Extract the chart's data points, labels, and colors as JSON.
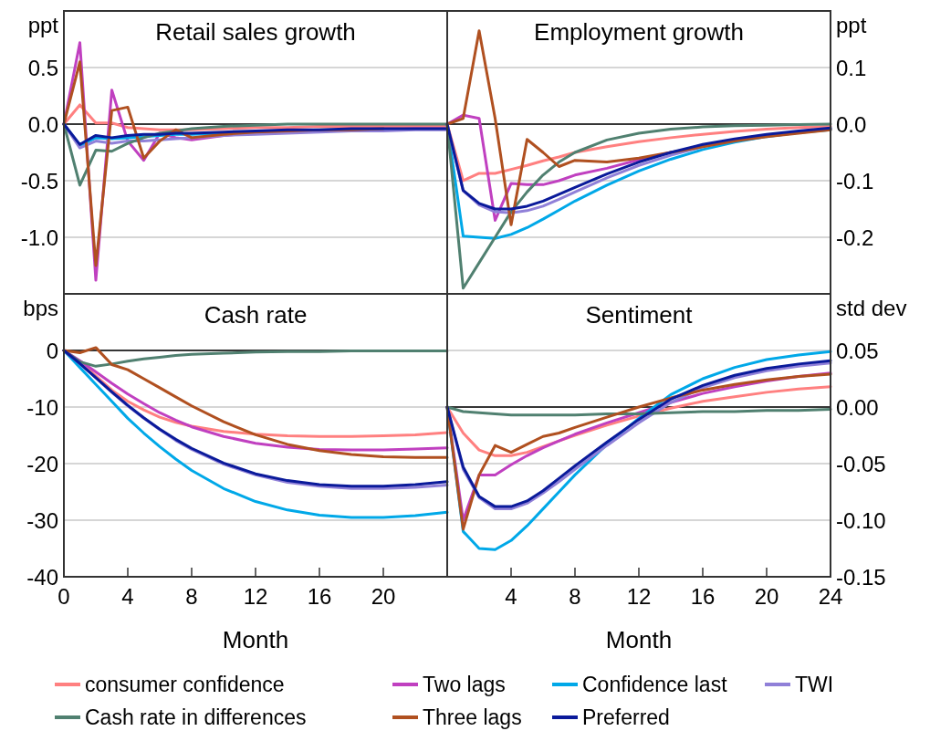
{
  "chart_data": [
    {
      "type": "line",
      "title": "Retail sales growth",
      "ylabel": "ppt",
      "x": [
        0,
        1,
        2,
        3,
        4,
        5,
        6,
        7,
        8,
        10,
        12,
        14,
        16,
        18,
        20,
        22,
        24
      ],
      "xlim": [
        0,
        24
      ],
      "ylim": [
        -1.5,
        1.0
      ],
      "yticks": [
        {
          "value": 0.5,
          "label": "0.5"
        },
        {
          "value": 0,
          "label": "0.0"
        },
        {
          "value": -0.5,
          "label": "-0.5"
        },
        {
          "value": -1,
          "label": "-1.0"
        }
      ],
      "tick_labels": "y",
      "grid": "y",
      "legend": "bottom",
      "ref_lines": [
        {
          "axis": "y",
          "value": 0,
          "color": "#000000"
        }
      ],
      "series": [
        {
          "name": "consumer confidence",
          "color": "#ff8080",
          "values": [
            0,
            0.17,
            0.01,
            0.01,
            -0.03,
            -0.04,
            -0.05,
            -0.05,
            -0.05,
            -0.04,
            -0.03,
            -0.03,
            -0.02,
            -0.02,
            -0.02,
            -0.02,
            -0.02
          ]
        },
        {
          "name": "Two lags",
          "color": "#c040c0",
          "values": [
            0,
            0.72,
            -1.38,
            0.3,
            -0.15,
            -0.32,
            -0.08,
            -0.12,
            -0.14,
            -0.1,
            -0.08,
            -0.07,
            -0.06,
            -0.05,
            -0.05,
            -0.04,
            -0.04
          ]
        },
        {
          "name": "Confidence last",
          "color": "#00a8e8",
          "values": [
            0,
            -0.19,
            -0.12,
            -0.13,
            -0.12,
            -0.11,
            -0.1,
            -0.09,
            -0.09,
            -0.08,
            -0.07,
            null,
            null,
            null,
            null,
            null,
            null
          ]
        },
        {
          "name": "TWI",
          "color": "#9080d8",
          "values": [
            0,
            -0.21,
            -0.15,
            -0.17,
            -0.15,
            -0.15,
            -0.14,
            -0.13,
            -0.12,
            -0.1,
            -0.09,
            -0.08,
            -0.07,
            -0.06,
            -0.06,
            -0.05,
            -0.05
          ]
        },
        {
          "name": "Cash rate in differences",
          "color": "#508070",
          "values": [
            0,
            -0.54,
            -0.23,
            -0.24,
            -0.17,
            -0.12,
            -0.08,
            -0.06,
            -0.04,
            -0.02,
            -0.01,
            0,
            0,
            0,
            0,
            0,
            0
          ]
        },
        {
          "name": "Three lags",
          "color": "#b05020",
          "values": [
            0,
            0.55,
            -1.25,
            0.12,
            0.15,
            -0.3,
            -0.15,
            -0.05,
            -0.12,
            -0.09,
            -0.07,
            -0.06,
            -0.05,
            -0.05,
            -0.04,
            null,
            null
          ]
        },
        {
          "name": "Preferred",
          "color": "#0a1a9a",
          "values": [
            0,
            -0.18,
            -0.1,
            -0.12,
            -0.1,
            -0.09,
            -0.09,
            -0.08,
            -0.08,
            -0.07,
            -0.06,
            -0.05,
            -0.05,
            -0.04,
            -0.04,
            -0.04,
            -0.04
          ]
        }
      ]
    },
    {
      "type": "line",
      "title": "Employment growth",
      "ylabel": "ppt",
      "x": [
        0,
        1,
        2,
        3,
        4,
        5,
        6,
        7,
        8,
        10,
        12,
        14,
        16,
        18,
        20,
        22,
        24
      ],
      "xlim": [
        0,
        24
      ],
      "ylim": [
        -0.3,
        0.2
      ],
      "yticks": [
        {
          "value": 0.1,
          "label": "0.1"
        },
        {
          "value": 0,
          "label": "0.0"
        },
        {
          "value": -0.1,
          "label": "-0.1"
        },
        {
          "value": -0.2,
          "label": "-0.2"
        }
      ],
      "tick_labels": "y",
      "grid": "y",
      "ref_lines": [
        {
          "axis": "y",
          "value": 0,
          "color": "#000000"
        }
      ],
      "series": [
        {
          "color": "#ff8080",
          "values": [
            0,
            -0.1,
            -0.087,
            -0.087,
            -0.08,
            -0.073,
            -0.065,
            -0.058,
            -0.05,
            -0.04,
            -0.031,
            -0.024,
            -0.018,
            -0.013,
            -0.009,
            -0.006,
            -0.004
          ]
        },
        {
          "color": "#c040c0",
          "values": [
            0,
            0.016,
            0.01,
            -0.17,
            -0.105,
            -0.107,
            -0.107,
            -0.1,
            -0.09,
            -0.078,
            -0.063,
            -0.05,
            null,
            null,
            null,
            null,
            null
          ]
        },
        {
          "color": "#00a8e8",
          "values": [
            0,
            -0.198,
            -0.2,
            -0.202,
            -0.195,
            -0.183,
            -0.168,
            -0.152,
            -0.136,
            -0.108,
            -0.083,
            -0.062,
            -0.045,
            -0.032,
            -0.022,
            -0.015,
            -0.01
          ]
        },
        {
          "color": "#9080d8",
          "values": [
            0,
            -0.118,
            -0.143,
            -0.155,
            -0.157,
            -0.153,
            -0.145,
            -0.133,
            -0.12,
            -0.095,
            -0.073,
            -0.055,
            -0.04,
            -0.029,
            -0.02,
            -0.014,
            -0.009
          ]
        },
        {
          "color": "#508070",
          "values": [
            0,
            -0.29,
            -0.245,
            -0.2,
            -0.155,
            -0.12,
            -0.09,
            -0.067,
            -0.05,
            -0.028,
            -0.016,
            -0.009,
            -0.005,
            -0.003,
            -0.002,
            -0.001,
            0
          ]
        },
        {
          "color": "#b05020",
          "values": [
            0,
            0.01,
            0.165,
            0.01,
            -0.178,
            -0.027,
            -0.05,
            -0.075,
            -0.064,
            -0.067,
            -0.06,
            -0.05,
            -0.04,
            -0.03,
            -0.022,
            -0.016,
            -0.01
          ]
        },
        {
          "color": "#0a1a9a",
          "values": [
            0,
            -0.117,
            -0.14,
            -0.15,
            -0.15,
            -0.145,
            -0.136,
            -0.124,
            -0.112,
            -0.088,
            -0.067,
            -0.05,
            -0.036,
            -0.026,
            -0.018,
            -0.012,
            -0.007
          ]
        }
      ]
    },
    {
      "type": "line",
      "title": "Cash rate",
      "ylabel": "bps",
      "xlabel": "Month",
      "x": [
        0,
        1,
        2,
        3,
        4,
        5,
        6,
        7,
        8,
        10,
        12,
        14,
        16,
        18,
        20,
        22,
        24
      ],
      "xlim": [
        0,
        24
      ],
      "xticks": [
        0,
        4,
        8,
        12,
        16,
        20
      ],
      "ylim": [
        -40,
        10
      ],
      "yticks": [
        0,
        -10,
        -20,
        -30,
        -40
      ],
      "grid": "y",
      "ref_lines": [
        {
          "axis": "y",
          "value": 0,
          "color": "#000000"
        }
      ],
      "series": [
        {
          "color": "#ff8080",
          "values": [
            0,
            -2,
            -4.5,
            -7,
            -9,
            -10.5,
            -11.8,
            -12.7,
            -13.4,
            -14.3,
            -14.8,
            -15.1,
            -15.2,
            -15.2,
            -15.1,
            -14.9,
            -14.5
          ]
        },
        {
          "color": "#c040c0",
          "values": [
            0,
            -1.8,
            -3.8,
            -5.8,
            -7.7,
            -9.4,
            -11,
            -12.3,
            -13.5,
            -15.2,
            -16.4,
            -17.1,
            -17.5,
            -17.6,
            -17.6,
            -17.4,
            -17.2
          ]
        },
        {
          "color": "#00a8e8",
          "values": [
            0,
            -3,
            -6,
            -9,
            -12,
            -14.6,
            -17,
            -19.2,
            -21.2,
            -24.4,
            -26.7,
            -28.2,
            -29.1,
            -29.5,
            -29.5,
            -29.2,
            -28.6
          ]
        },
        {
          "color": "#9080d8",
          "values": [
            0,
            -2.3,
            -4.8,
            -7.4,
            -9.8,
            -12,
            -14,
            -15.9,
            -17.5,
            -20.1,
            -22,
            -23.3,
            -24,
            -24.4,
            -24.4,
            -24.2,
            -23.8
          ]
        },
        {
          "color": "#508070",
          "values": [
            0,
            -2,
            -2.8,
            -2.4,
            -1.9,
            -1.5,
            -1.2,
            -0.9,
            -0.7,
            -0.5,
            -0.3,
            -0.2,
            -0.2,
            -0.1,
            -0.1,
            -0.1,
            -0.1
          ]
        },
        {
          "color": "#b05020",
          "values": [
            0,
            -0.4,
            0.5,
            -2.5,
            -3.4,
            -5,
            -6.6,
            -8.2,
            -9.8,
            -12.6,
            -14.9,
            -16.6,
            -17.7,
            -18.4,
            -18.8,
            -18.9,
            -18.9
          ]
        },
        {
          "color": "#0a1a9a",
          "values": [
            0,
            -2.3,
            -4.8,
            -7.3,
            -9.7,
            -11.9,
            -13.9,
            -15.7,
            -17.3,
            -19.9,
            -21.8,
            -23,
            -23.7,
            -24,
            -24,
            -23.7,
            -23.2
          ]
        }
      ]
    },
    {
      "type": "line",
      "title": "Sentiment",
      "ylabel": "std dev",
      "xlabel": "Month",
      "x": [
        0,
        1,
        2,
        3,
        4,
        5,
        6,
        7,
        8,
        10,
        12,
        14,
        16,
        18,
        20,
        22,
        24
      ],
      "xlim": [
        0,
        24
      ],
      "xticks": [
        4,
        8,
        12,
        16,
        20,
        24
      ],
      "ylim": [
        -0.15,
        0.1
      ],
      "yticks": [
        0.05,
        {
          "value": 0,
          "label": "0.00"
        },
        -0.05,
        {
          "value": -0.1,
          "label": "-0.10"
        },
        -0.15
      ],
      "grid": "y",
      "ref_lines": [
        {
          "axis": "y",
          "value": 0,
          "color": "#000000"
        }
      ],
      "series": [
        {
          "color": "#ff8080",
          "values": [
            0,
            -0.023,
            -0.038,
            -0.043,
            -0.043,
            -0.04,
            -0.035,
            -0.03,
            -0.025,
            -0.016,
            -0.008,
            -0.001,
            0.005,
            0.009,
            0.013,
            0.016,
            0.018
          ]
        },
        {
          "color": "#c040c0",
          "values": [
            0,
            -0.1,
            -0.06,
            -0.06,
            -0.051,
            -0.043,
            -0.036,
            -0.03,
            -0.024,
            -0.014,
            -0.005,
            0.004,
            0.012,
            0.018,
            0.023,
            0.027,
            0.03
          ]
        },
        {
          "color": "#00a8e8",
          "values": [
            0,
            -0.11,
            -0.125,
            -0.126,
            -0.118,
            -0.105,
            -0.09,
            -0.075,
            -0.06,
            -0.033,
            -0.01,
            0.011,
            0.025,
            0.035,
            0.042,
            0.046,
            0.049
          ]
        },
        {
          "color": "#9080d8",
          "values": [
            0,
            -0.055,
            -0.08,
            -0.09,
            -0.09,
            -0.085,
            -0.076,
            -0.066,
            -0.055,
            -0.034,
            -0.014,
            0.004,
            0.017,
            0.026,
            0.032,
            0.036,
            0.039
          ]
        },
        {
          "color": "#508070",
          "values": [
            0,
            -0.004,
            -0.005,
            -0.006,
            -0.007,
            -0.007,
            -0.007,
            -0.007,
            -0.007,
            -0.006,
            -0.006,
            -0.005,
            -0.004,
            -0.004,
            -0.003,
            -0.003,
            -0.002
          ]
        },
        {
          "color": "#b05020",
          "values": [
            0,
            -0.108,
            -0.06,
            -0.034,
            -0.04,
            -0.033,
            -0.026,
            -0.023,
            -0.018,
            -0.009,
            0,
            0.008,
            0.015,
            0.02,
            0.024,
            0.027,
            0.029
          ]
        },
        {
          "color": "#0a1a9a",
          "values": [
            0,
            -0.053,
            -0.079,
            -0.088,
            -0.088,
            -0.083,
            -0.074,
            -0.063,
            -0.052,
            -0.031,
            -0.011,
            0.007,
            0.019,
            0.028,
            0.034,
            0.038,
            0.041
          ]
        }
      ]
    }
  ]
}
